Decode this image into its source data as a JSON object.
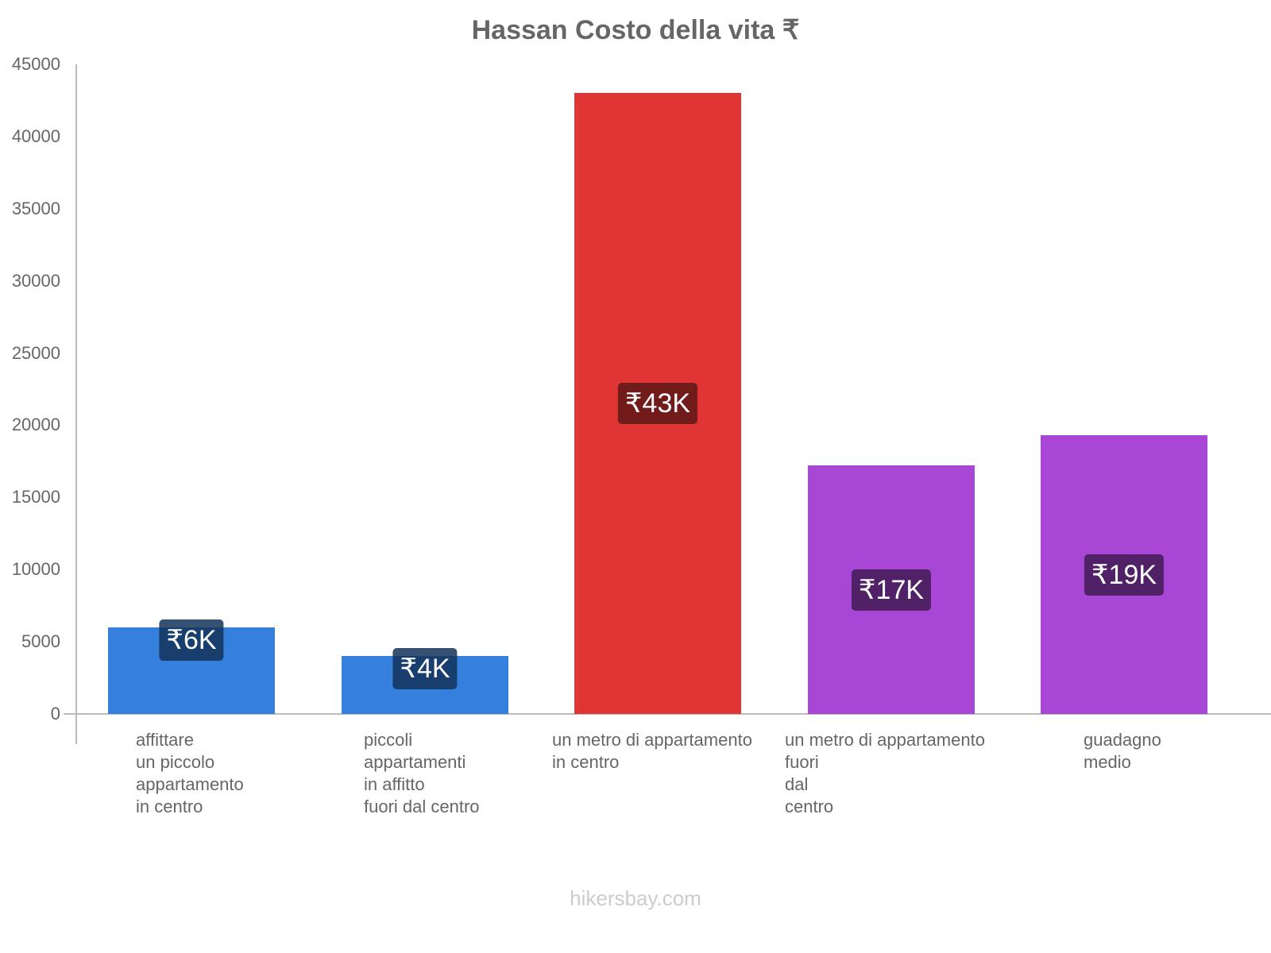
{
  "chart_data": {
    "type": "bar",
    "title": "Hassan Costo della vita ₹",
    "xlabel": "",
    "ylabel": "",
    "ylim": [
      0,
      45000
    ],
    "yticks": [
      0,
      5000,
      10000,
      15000,
      20000,
      25000,
      30000,
      35000,
      40000,
      45000
    ],
    "categories": [
      "affittare\nun piccolo\nappartamento\nin centro",
      "piccoli\nappartamenti\nin affitto\nfuori dal centro",
      "un metro di appartamento\nin centro",
      "un metro di appartamento\nfuori\ndal\ncentro",
      "guadagno\nmedio"
    ],
    "values": [
      6000,
      4000,
      43000,
      17200,
      19300
    ],
    "value_labels": [
      "₹6K",
      "₹4K",
      "₹43K",
      "₹17K",
      "₹19K"
    ],
    "colors": [
      "#3480dc",
      "#3480dc",
      "#e03535",
      "#a847d6",
      "#a847d6"
    ],
    "label_colors": [
      "rgba(20,50,90,0.85)",
      "rgba(20,50,90,0.85)",
      "#721b1b",
      "#512168",
      "#512168"
    ],
    "grid": false,
    "legend": "none"
  },
  "footer": "hikersbay.com"
}
